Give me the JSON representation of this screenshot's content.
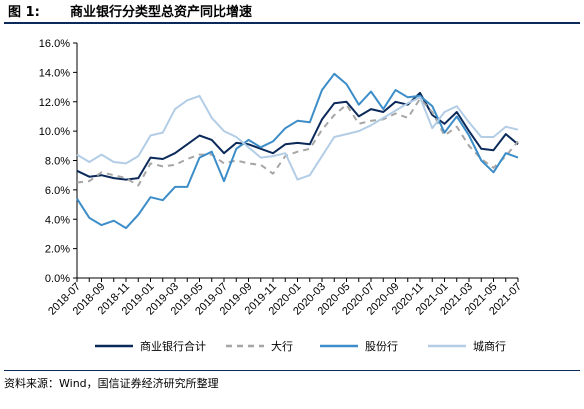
{
  "figure": {
    "number": "图 1:",
    "title": "商业银行分类型总资产同比增速"
  },
  "source": "资料来源：Wind，国信证券经济研究所整理",
  "colors": {
    "商业银行合计": "#0b2a5a",
    "大行": "#a6a6a6",
    "股份行": "#3c8dc8",
    "城商行": "#b4cde6"
  },
  "chart_data": {
    "type": "line",
    "title": "",
    "xlabel": "",
    "ylabel": "",
    "ylim": [
      0,
      16
    ],
    "yticks": [
      "0.0%",
      "2.0%",
      "4.0%",
      "6.0%",
      "8.0%",
      "10.0%",
      "12.0%",
      "14.0%",
      "16.0%"
    ],
    "grid": false,
    "legend_position": "bottom",
    "x": [
      "2018-07",
      "2018-08",
      "2018-09",
      "2018-10",
      "2018-11",
      "2018-12",
      "2019-01",
      "2019-02",
      "2019-03",
      "2019-04",
      "2019-05",
      "2019-06",
      "2019-07",
      "2019-08",
      "2019-09",
      "2019-10",
      "2019-11",
      "2019-12",
      "2020-01",
      "2020-02",
      "2020-03",
      "2020-04",
      "2020-05",
      "2020-06",
      "2020-07",
      "2020-08",
      "2020-09",
      "2020-10",
      "2020-11",
      "2020-12",
      "2021-01",
      "2021-02",
      "2021-03",
      "2021-04",
      "2021-05",
      "2021-06",
      "2021-07"
    ],
    "xtick_labels": [
      "2018-07",
      "2018-09",
      "2018-11",
      "2019-01",
      "2019-03",
      "2019-05",
      "2019-07",
      "2019-09",
      "2019-11",
      "2020-01",
      "2020-03",
      "2020-05",
      "2020-07",
      "2020-09",
      "2020-11",
      "2021-01",
      "2021-03",
      "2021-05",
      "2021-07"
    ],
    "series": [
      {
        "name": "商业银行合计",
        "style": "solid",
        "values": [
          7.3,
          6.9,
          7.0,
          6.8,
          6.7,
          6.8,
          8.2,
          8.1,
          8.5,
          9.1,
          9.7,
          9.4,
          8.5,
          9.2,
          9.1,
          8.8,
          8.5,
          9.1,
          9.2,
          9.1,
          10.8,
          11.9,
          12.0,
          11.0,
          11.5,
          11.3,
          12.0,
          11.8,
          12.6,
          11.1,
          10.5,
          11.3,
          10.0,
          8.8,
          8.7,
          9.8,
          9.1
        ]
      },
      {
        "name": "大行",
        "style": "dashed",
        "values": [
          6.5,
          6.6,
          7.2,
          7.0,
          6.8,
          6.3,
          7.8,
          7.6,
          7.7,
          8.1,
          8.4,
          8.4,
          7.8,
          8.0,
          7.8,
          7.7,
          7.1,
          8.3,
          8.6,
          8.8,
          10.1,
          11.1,
          11.8,
          10.5,
          10.7,
          10.8,
          11.2,
          10.9,
          12.2,
          11.3,
          9.7,
          10.3,
          9.0,
          8.1,
          7.5,
          8.3,
          9.3
        ]
      },
      {
        "name": "股份行",
        "style": "solid",
        "values": [
          5.4,
          4.1,
          3.6,
          3.9,
          3.4,
          4.3,
          5.5,
          5.3,
          6.2,
          6.2,
          8.2,
          8.6,
          6.6,
          8.8,
          9.4,
          8.9,
          9.3,
          10.2,
          10.7,
          10.6,
          12.8,
          13.9,
          13.2,
          11.8,
          12.7,
          11.5,
          12.8,
          12.3,
          12.4,
          11.7,
          9.9,
          11.0,
          9.7,
          8.0,
          7.2,
          8.5,
          8.2
        ]
      },
      {
        "name": "城商行",
        "style": "solid",
        "values": [
          8.4,
          7.9,
          8.4,
          7.9,
          7.8,
          8.3,
          9.7,
          9.9,
          11.5,
          12.1,
          12.4,
          10.9,
          10.0,
          9.6,
          8.9,
          8.2,
          8.3,
          8.5,
          6.7,
          7.0,
          8.3,
          9.6,
          9.8,
          10.0,
          10.4,
          10.9,
          11.4,
          11.9,
          12.3,
          10.2,
          11.3,
          11.7,
          10.6,
          9.6,
          9.6,
          10.3,
          10.1
        ]
      }
    ]
  }
}
